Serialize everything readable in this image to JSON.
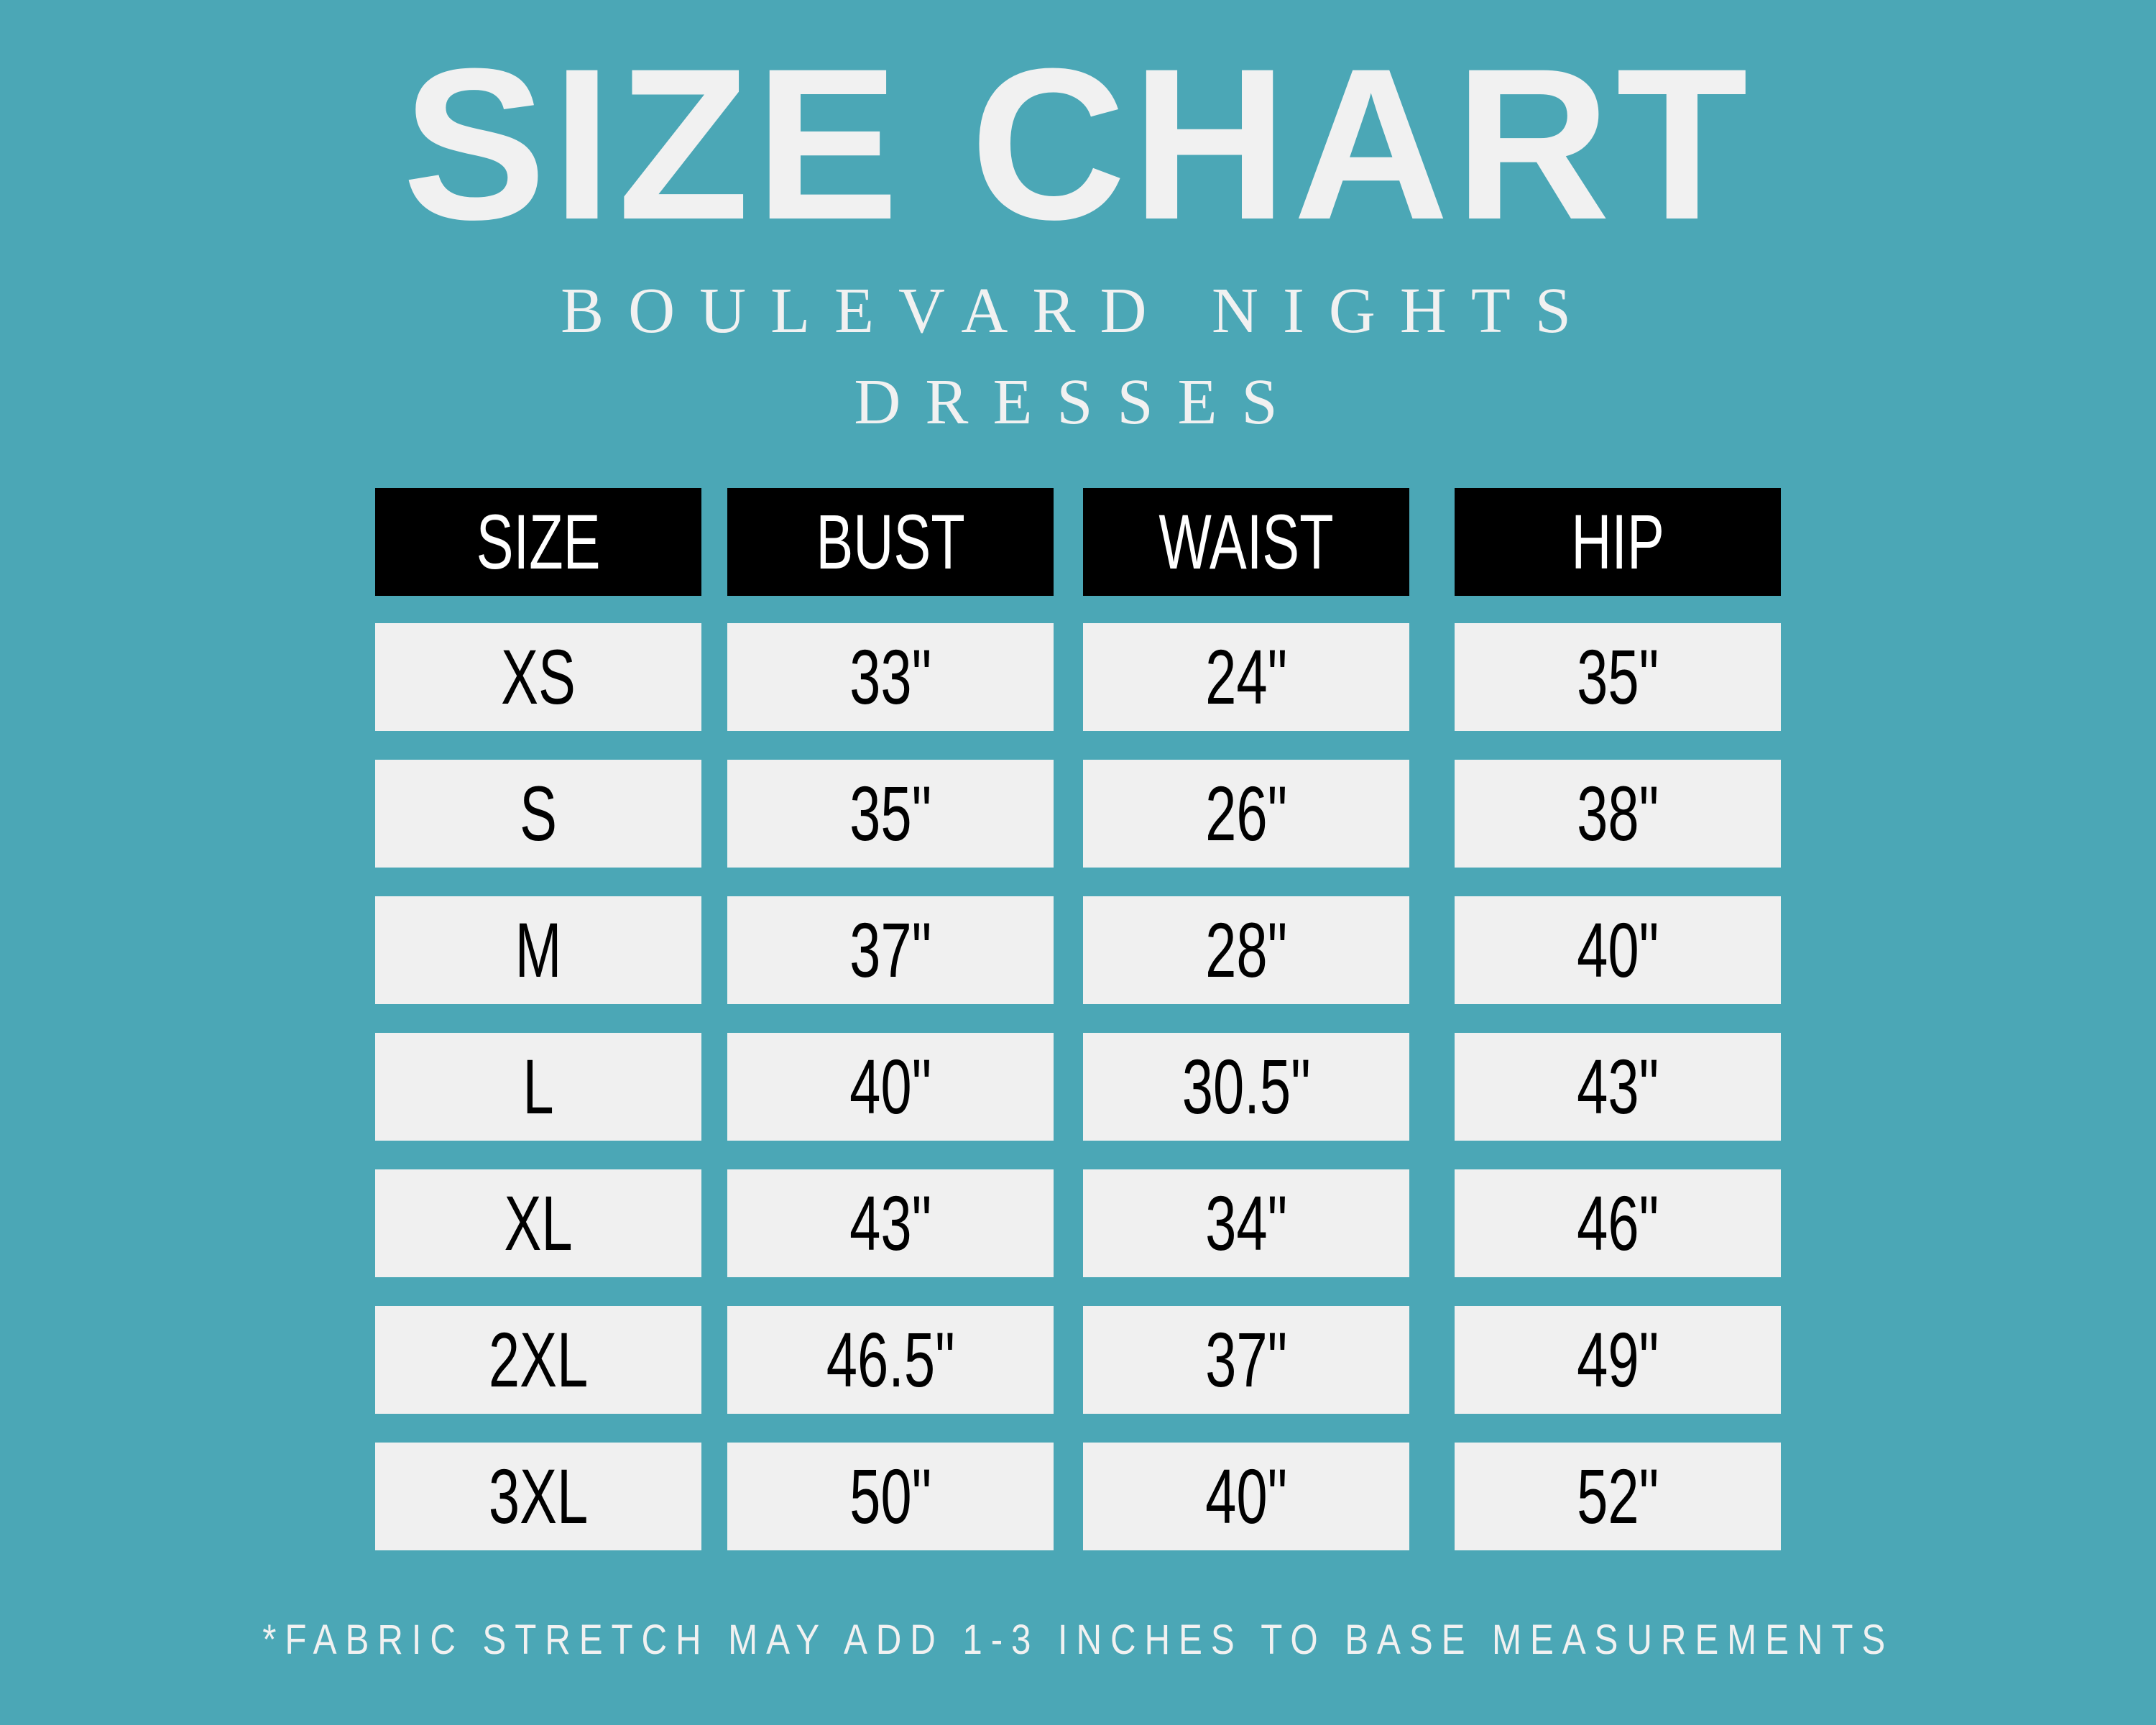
{
  "title": "SIZE CHART",
  "subtitle_line1": "BOULEVARD NIGHTS",
  "subtitle_line2": "DRESSES",
  "table": {
    "headers": [
      "SIZE",
      "BUST",
      "WAIST",
      "HIP"
    ],
    "rows": [
      [
        "XS",
        "33\"",
        "24\"",
        "35\""
      ],
      [
        "S",
        "35\"",
        "26\"",
        "38\""
      ],
      [
        "M",
        "37\"",
        "28\"",
        "40\""
      ],
      [
        "L",
        "40\"",
        "30.5\"",
        "43\""
      ],
      [
        "XL",
        "43\"",
        "34\"",
        "46\""
      ],
      [
        "2XL",
        "46.5\"",
        "37\"",
        "49\""
      ],
      [
        "3XL",
        "50\"",
        "40\"",
        "52\""
      ]
    ]
  },
  "footnote": "*FABRIC STRETCH MAY ADD 1-3 INCHES TO BASE MEASUREMENTS",
  "colors": {
    "background": "#4ba7b6",
    "header_bg": "#000000",
    "cell_bg": "#f0f0f0",
    "text_light": "#f1f1f1"
  }
}
